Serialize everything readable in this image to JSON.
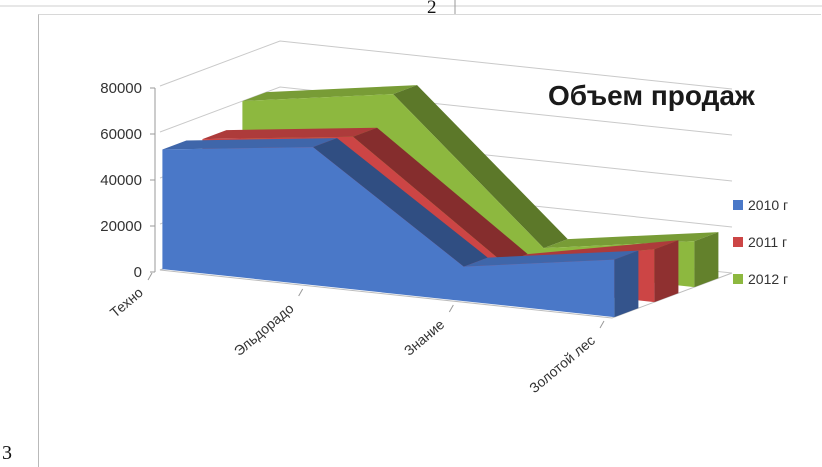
{
  "page": {
    "page_number": "2",
    "figure_number": "3"
  },
  "chart_data": {
    "type": "area",
    "subtype": "3d-line",
    "title": "Объем продаж",
    "categories": [
      "Техно",
      "Эльдорадо",
      "Знание",
      "Золотой лес"
    ],
    "series": [
      {
        "name": "2010 г",
        "values": [
          52000,
          60000,
          15000,
          25000
        ],
        "color": "#4a78c8"
      },
      {
        "name": "2011 г",
        "values": [
          50000,
          58000,
          10000,
          23000
        ],
        "color": "#cc4545"
      },
      {
        "name": "2012 г",
        "values": [
          60000,
          70000,
          10000,
          20000
        ],
        "color": "#8db83f"
      }
    ],
    "y_ticks": [
      "80000",
      "60000",
      "40000",
      "20000",
      "0"
    ],
    "ylim": [
      0,
      80000
    ],
    "grid": true,
    "legend_position": "right"
  }
}
